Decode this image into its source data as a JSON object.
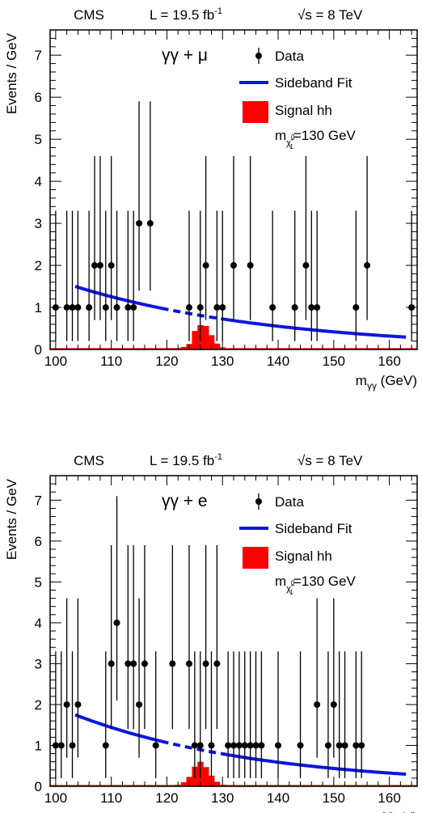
{
  "chart_data": [
    {
      "type": "scatter",
      "header": {
        "experiment": "CMS",
        "lumi": "L = 19.5 fb",
        "lumi_sup": "-1",
        "energy": "√s = 8 TeV"
      },
      "channel": "γγ + μ",
      "xlabel": "(GeV)",
      "xlabel_main": "m",
      "xlabel_sub": "γγ",
      "ylabel": "Events / GeV",
      "xlim": [
        99,
        165
      ],
      "ylim": [
        0,
        7.6
      ],
      "xticks": [
        100,
        110,
        120,
        130,
        140,
        150,
        160
      ],
      "yticks": [
        0,
        1,
        2,
        3,
        4,
        5,
        6,
        7
      ],
      "legend": {
        "data": "Data",
        "fit": "Sideband Fit",
        "signal": "Signal hh",
        "mass_prefix": "m",
        "mass_sub": "χ̃",
        "mass_sub2": "1",
        "mass_sup": "0",
        "mass_value": "=130 GeV"
      },
      "series": [
        {
          "name": "Data",
          "x": [
            100,
            102,
            103,
            104,
            106,
            107,
            108,
            109,
            110,
            111,
            113,
            114,
            115,
            117,
            124,
            126,
            127,
            129,
            130,
            132,
            135,
            139,
            143,
            145,
            146,
            147,
            154,
            156,
            164
          ],
          "y": [
            1,
            1,
            1,
            1,
            1,
            2,
            2,
            1,
            2,
            1,
            1,
            1,
            3,
            3,
            1,
            1,
            2,
            1,
            1,
            2,
            2,
            1,
            1,
            2,
            1,
            1,
            1,
            2,
            1
          ]
        },
        {
          "name": "Sideband Fit",
          "fit": {
            "x0": 103.5,
            "y0": 1.5,
            "tau": 36.5
          },
          "x_start": 103.5,
          "x_end": 163,
          "blind": [
            119,
            131
          ]
        },
        {
          "name": "Signal hh",
          "x": [
            123,
            124,
            125,
            126,
            127,
            128,
            129,
            130
          ],
          "y": [
            0.06,
            0.13,
            0.44,
            0.58,
            0.56,
            0.34,
            0.14,
            0.05
          ]
        }
      ],
      "colors": {
        "fit": "#0d16e0",
        "signal": "#ff0000",
        "data": "#000000"
      }
    },
    {
      "type": "scatter",
      "header": {
        "experiment": "CMS",
        "lumi": "L = 19.5 fb",
        "lumi_sup": "-1",
        "energy": "√s = 8 TeV"
      },
      "channel": "γγ + e",
      "xlabel": "(GeV)",
      "xlabel_main": "m",
      "xlabel_sub": "γγ",
      "ylabel": "Events / GeV",
      "xlim": [
        99,
        165
      ],
      "ylim": [
        0,
        7.6
      ],
      "xticks": [
        100,
        110,
        120,
        130,
        140,
        150,
        160
      ],
      "yticks": [
        0,
        1,
        2,
        3,
        4,
        5,
        6,
        7
      ],
      "legend": {
        "data": "Data",
        "fit": "Sideband Fit",
        "signal": "Signal hh",
        "mass_prefix": "m",
        "mass_sub": "χ̃",
        "mass_sub2": "1",
        "mass_sup": "0",
        "mass_value": "=130 GeV"
      },
      "series": [
        {
          "name": "Data",
          "x": [
            100,
            101,
            102,
            103,
            104,
            109,
            110,
            111,
            113,
            114,
            115,
            116,
            118,
            121,
            124,
            125,
            126,
            127,
            128,
            129,
            131,
            132,
            133,
            134,
            135,
            136,
            137,
            140,
            144,
            147,
            149,
            150,
            151,
            152,
            154,
            155
          ],
          "y": [
            1,
            1,
            2,
            1,
            2,
            1,
            3,
            4,
            3,
            3,
            2,
            3,
            1,
            3,
            3,
            1,
            1,
            3,
            1,
            3,
            1,
            1,
            1,
            1,
            1,
            1,
            1,
            1,
            1,
            2,
            1,
            2,
            1,
            1,
            1,
            1
          ]
        },
        {
          "name": "Sideband Fit",
          "fit": {
            "x0": 103.5,
            "y0": 1.75,
            "tau": 33.5
          },
          "x_start": 103.5,
          "x_end": 163,
          "blind": [
            119,
            131
          ]
        },
        {
          "name": "Signal hh",
          "x": [
            122,
            123,
            124,
            125,
            126,
            127,
            128,
            129,
            130
          ],
          "y": [
            0.04,
            0.1,
            0.23,
            0.48,
            0.6,
            0.47,
            0.26,
            0.11,
            0.04
          ]
        }
      ],
      "colors": {
        "fit": "#0d16e0",
        "signal": "#ff0000",
        "data": "#000000"
      }
    }
  ]
}
